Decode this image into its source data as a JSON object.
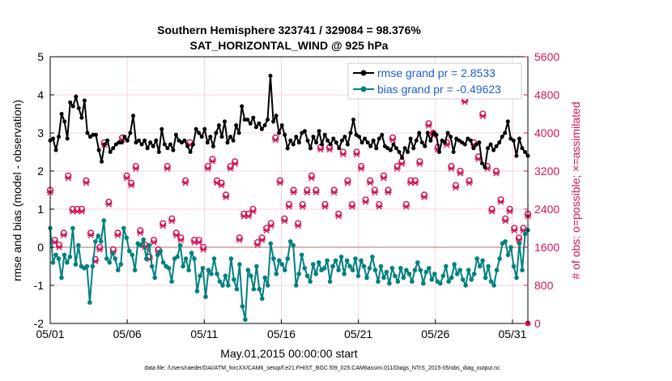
{
  "chart_data": {
    "type": "line",
    "title": "Southern Hemisphere 323741 / 329084 = 98.376%",
    "subtitle": "SAT_HORIZONTAL_WIND @ 925 hPa",
    "xlabel": "May.01,2015 00:00:00 start",
    "ylabel": "rmse and bias (model - observation)",
    "ylabel_right": "# of obs: o=possible; ×=assimilated",
    "x_ticks": [
      "05/01",
      "05/06",
      "05/11",
      "05/16",
      "05/21",
      "05/26",
      "05/31"
    ],
    "x_tick_days": [
      1,
      6,
      11,
      16,
      21,
      26,
      31
    ],
    "xlim": [
      1,
      32
    ],
    "ylim": [
      -2,
      5
    ],
    "y_ticks": [
      "-2",
      "-1",
      "0",
      "1",
      "2",
      "3",
      "4",
      "5"
    ],
    "ylim_right": [
      0,
      5600
    ],
    "y_ticks_right": [
      "0",
      "800",
      "1600",
      "2400",
      "3200",
      "4000",
      "4800",
      "5600"
    ],
    "grid": true,
    "legend_position": "top-right",
    "series": [
      {
        "name": "rmse grand pr = 2.8533",
        "color": "#000000",
        "axis": "left",
        "values": [
          2.8,
          2.85,
          2.55,
          2.9,
          3.5,
          3.3,
          2.85,
          3.8,
          3.7,
          3.95,
          3.65,
          3.4,
          3.85,
          3.0,
          2.9,
          2.95,
          2.95,
          2.55,
          2.25,
          2.7,
          2.8,
          2.5,
          2.6,
          2.7,
          2.75,
          2.75,
          2.9,
          2.8,
          3.0,
          3.45,
          2.75,
          2.8,
          2.7,
          2.8,
          2.6,
          2.75,
          2.65,
          2.8,
          2.5,
          3.1,
          2.7,
          2.6,
          2.7,
          2.55,
          2.95,
          2.8,
          2.75,
          2.8,
          2.65,
          2.5,
          2.7,
          3.1,
          3.0,
          2.9,
          3.1,
          2.75,
          2.9,
          2.65,
          3.0,
          3.2,
          2.9,
          3.3,
          2.75,
          2.9,
          2.8,
          3.2,
          3.0,
          3.7,
          3.35,
          3.35,
          3.25,
          3.4,
          3.15,
          3.25,
          3.1,
          3.2,
          3.35,
          4.5,
          3.3,
          3.45,
          3.0,
          3.2,
          2.95,
          2.6,
          2.8,
          2.7,
          2.9,
          2.75,
          3.0,
          3.05,
          2.8,
          2.6,
          2.9,
          2.75,
          3.05,
          2.7,
          2.95,
          2.8,
          2.7,
          2.85,
          2.75,
          2.6,
          2.8,
          2.9,
          2.7,
          3.0,
          3.35,
          2.95,
          2.9,
          2.75,
          2.85,
          2.75,
          2.65,
          2.8,
          2.6,
          2.85,
          2.95,
          2.65,
          2.6,
          2.55,
          2.7,
          2.6,
          2.5,
          2.35,
          2.6,
          2.5,
          2.85,
          2.6,
          2.8,
          3.0,
          2.75,
          2.65,
          3.0,
          2.8,
          3.0,
          2.95,
          2.5,
          2.8,
          2.75,
          3.0,
          2.9,
          2.5,
          2.85,
          2.8,
          2.75,
          2.7,
          2.85,
          2.8,
          2.6,
          2.7,
          2.75,
          2.2,
          2.1,
          2.6,
          2.7,
          2.55,
          2.65,
          2.75,
          2.9,
          3.0,
          3.3,
          2.85,
          2.8,
          2.4,
          2.85,
          2.6,
          2.5,
          2.4
        ]
      },
      {
        "name": "bias grand pr = -0.49623",
        "color": "#008080",
        "axis": "left",
        "values": [
          0.5,
          -0.4,
          -0.2,
          -0.3,
          -0.8,
          -0.2,
          -0.4,
          -0.25,
          0.5,
          -0.45,
          0.05,
          -0.5,
          -0.55,
          -0.5,
          -1.45,
          -0.5,
          0.15,
          0.3,
          0.15,
          0.7,
          -0.3,
          -0.4,
          -0.15,
          -0.3,
          -0.6,
          -0.45,
          0.5,
          0.25,
          -0.1,
          -0.2,
          -0.6,
          0.1,
          0.05,
          0.2,
          -0.3,
          0.05,
          -0.5,
          -0.8,
          -0.2,
          -0.1,
          -0.4,
          -0.5,
          -0.55,
          -0.9,
          -0.3,
          -0.25,
          0.05,
          -0.5,
          -0.3,
          -0.6,
          -0.15,
          -0.3,
          -1.15,
          -0.75,
          -0.55,
          -1.3,
          -0.6,
          -0.7,
          -0.3,
          -0.7,
          -0.9,
          -1.0,
          -0.75,
          -1.0,
          -0.3,
          -0.85,
          -1.1,
          -0.45,
          -1.55,
          -1.9,
          -0.6,
          -0.75,
          -1.1,
          -0.5,
          -1.1,
          -1.35,
          -0.8,
          -1.0,
          0.1,
          -0.3,
          -0.7,
          -0.35,
          -0.45,
          -0.6,
          -0.3,
          0.15,
          0.05,
          -1.0,
          -0.7,
          -0.2,
          -0.55,
          -0.75,
          -0.9,
          -0.45,
          -0.7,
          -0.4,
          -0.6,
          -0.55,
          -0.35,
          -0.9,
          -0.5,
          -0.35,
          -0.6,
          -0.25,
          -0.7,
          -0.35,
          -0.5,
          -0.6,
          -0.3,
          -0.75,
          -0.35,
          -0.5,
          -0.8,
          -0.55,
          -0.25,
          -0.6,
          -0.9,
          -0.5,
          -0.8,
          -0.65,
          -0.95,
          -0.55,
          -0.75,
          -0.9,
          -0.55,
          -0.8,
          -0.6,
          -0.7,
          -0.9,
          -0.6,
          -0.4,
          -0.6,
          -0.95,
          -0.65,
          -0.55,
          -0.85,
          -0.7,
          -0.9,
          -0.95,
          -0.75,
          -0.5,
          -0.9,
          -0.8,
          -0.45,
          -0.7,
          -0.6,
          -0.85,
          -1.0,
          -0.6,
          -0.85,
          -0.7,
          -0.3,
          -0.5,
          -0.35,
          -0.8,
          -0.5,
          -0.9,
          -1.0,
          -0.6,
          -0.3,
          0.1,
          0.15,
          -0.2,
          0.0,
          -0.5,
          -0.8,
          0.1,
          -0.6,
          0.35,
          0.45
        ]
      },
      {
        "name": "obs possible",
        "color": "#d4145a",
        "axis": "right",
        "marker": "o",
        "values": [
          2800,
          1750,
          1650,
          1900,
          3100,
          2400,
          2400,
          2400,
          3000,
          1900,
          1350,
          1600,
          3800,
          2550,
          1550,
          1900,
          3900,
          3100,
          2950,
          3300,
          1950,
          1650,
          1400,
          1750,
          1550,
          2100,
          3300,
          2200,
          1900,
          1800,
          3000,
          3800,
          1750,
          1750,
          1600,
          3300,
          3450,
          3000,
          2950,
          2700,
          3300,
          3400,
          1800,
          2300,
          2300,
          2400,
          1700,
          1800,
          2000,
          2100,
          3900,
          3000,
          2200,
          2500,
          2800,
          2100,
          2500,
          2800,
          3100,
          2800,
          3700,
          2500,
          3700,
          2800,
          2300,
          3600,
          3000,
          2500,
          3600,
          3300,
          2600,
          3000,
          2800,
          2500,
          3100,
          2800,
          3900,
          3300,
          3400,
          2500,
          3000,
          3000,
          3400,
          2700,
          4200,
          4000,
          3700,
          4900,
          3800,
          3300,
          2900,
          3200,
          4700,
          3000,
          3800,
          3500,
          4400,
          3300,
          2400,
          3200,
          2600,
          2200,
          2400,
          2000,
          1800,
          2000,
          2300
        ]
      },
      {
        "name": "obs assimilated",
        "color": "#d4145a",
        "axis": "right",
        "marker": "x",
        "values": [
          2750,
          1700,
          1600,
          1850,
          3050,
          2350,
          2350,
          2350,
          2950,
          1850,
          1300,
          1550,
          3750,
          2500,
          1500,
          1850,
          3850,
          3050,
          2900,
          3250,
          1900,
          1600,
          1350,
          1700,
          1500,
          2050,
          3250,
          2150,
          1850,
          1750,
          2950,
          3750,
          1700,
          1700,
          1550,
          3250,
          3400,
          2950,
          2900,
          2650,
          3250,
          3350,
          1750,
          2250,
          2250,
          2350,
          1650,
          1750,
          1950,
          2050,
          3850,
          2950,
          2150,
          2450,
          2750,
          2050,
          2450,
          2750,
          3050,
          2750,
          3650,
          2450,
          3650,
          2750,
          2250,
          3550,
          2950,
          2450,
          3550,
          3250,
          2550,
          2950,
          2750,
          2450,
          3050,
          2750,
          3850,
          3250,
          3350,
          2450,
          2950,
          2950,
          3350,
          2650,
          4150,
          3950,
          3650,
          4850,
          3750,
          3250,
          2850,
          3150,
          4650,
          2950,
          3750,
          3450,
          4350,
          3250,
          2350,
          3150,
          2550,
          2150,
          2350,
          1950,
          1750,
          1950,
          2250
        ]
      }
    ],
    "footnote": "data file: /Users/raeder/DAI/ATM_forcXX/CAM6_setup/f.e21.FHIST_BGC.f09_025.CAM6assim.011/Diags_NTrS_2015-05/obs_diag_output.nc"
  }
}
